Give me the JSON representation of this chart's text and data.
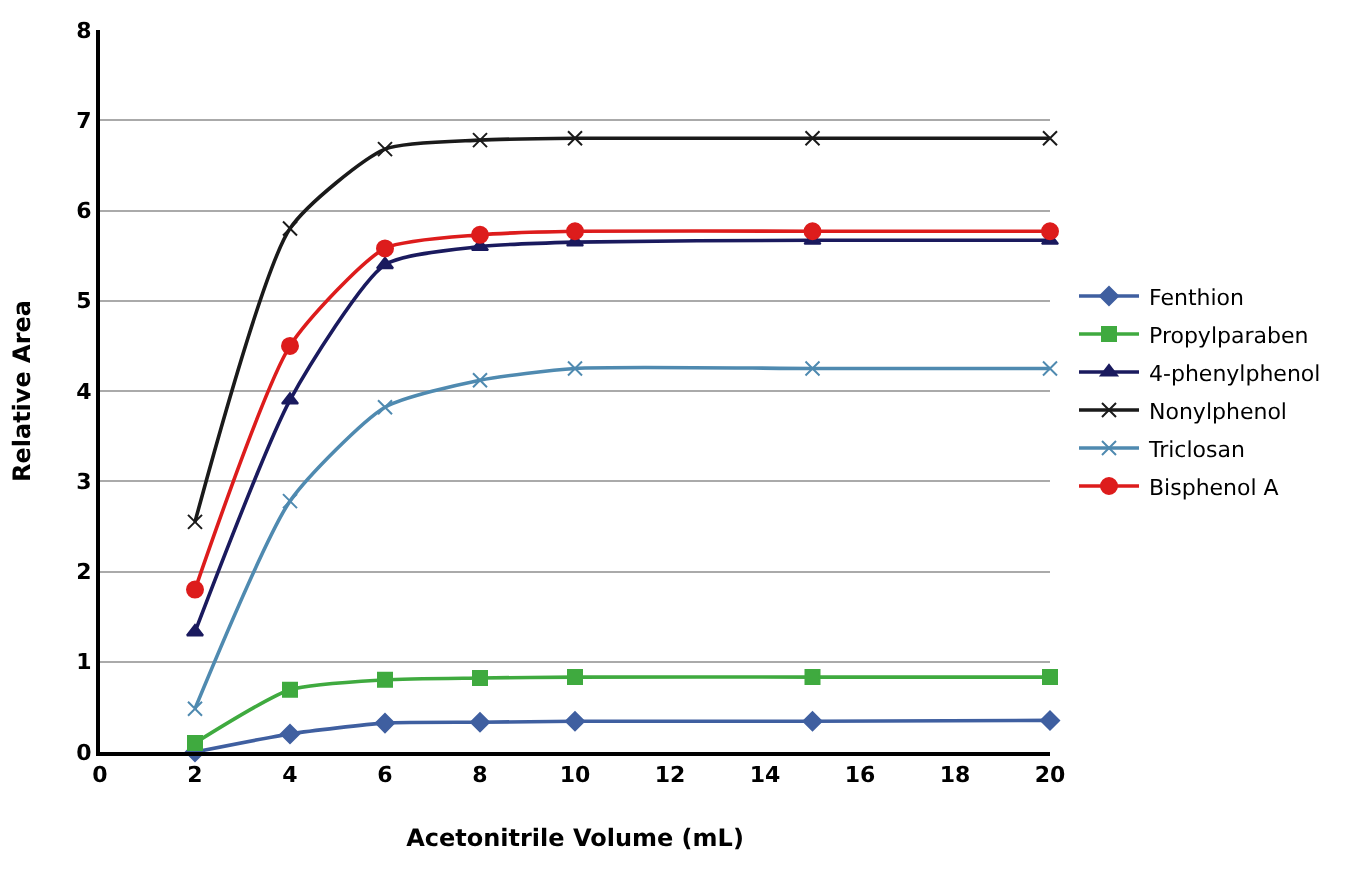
{
  "chart_data": {
    "type": "line",
    "xlabel": "Acetonitrile Volume (mL)",
    "ylabel": "Relative Area",
    "x": [
      2,
      4,
      6,
      8,
      10,
      15,
      20
    ],
    "xlim": [
      0,
      20
    ],
    "xticks": [
      0,
      2,
      4,
      6,
      8,
      10,
      12,
      14,
      16,
      18,
      20
    ],
    "ylim": [
      0,
      8
    ],
    "yticks": [
      0,
      1,
      2,
      3,
      4,
      5,
      6,
      7,
      8
    ],
    "grid": "y",
    "legend": "right",
    "line_style": "solid",
    "series": [
      {
        "name": "Fenthion",
        "color": "#3f5fa0",
        "marker": "diamond",
        "values": [
          0,
          0.2,
          0.32,
          0.33,
          0.34,
          0.34,
          0.35
        ]
      },
      {
        "name": "Propylparaben",
        "color": "#3faa3f",
        "marker": "square",
        "values": [
          0.1,
          0.69,
          0.8,
          0.82,
          0.83,
          0.83,
          0.83
        ]
      },
      {
        "name": "4-phenylphenol",
        "color": "#1a1a5e",
        "marker": "triangle",
        "values": [
          1.33,
          3.9,
          5.4,
          5.6,
          5.65,
          5.67,
          5.67
        ]
      },
      {
        "name": "Nonylphenol",
        "color": "#1a1a1a",
        "marker": "cross",
        "values": [
          2.55,
          5.8,
          6.68,
          6.78,
          6.8,
          6.8,
          6.8
        ]
      },
      {
        "name": "Triclosan",
        "color": "#4f8ab0",
        "marker": "cross",
        "values": [
          0.48,
          2.78,
          3.82,
          4.12,
          4.25,
          4.25,
          4.25
        ]
      },
      {
        "name": "Bisphenol A",
        "color": "#dd1c1c",
        "marker": "circle",
        "values": [
          1.8,
          4.5,
          5.58,
          5.73,
          5.77,
          5.77,
          5.77
        ]
      }
    ]
  }
}
